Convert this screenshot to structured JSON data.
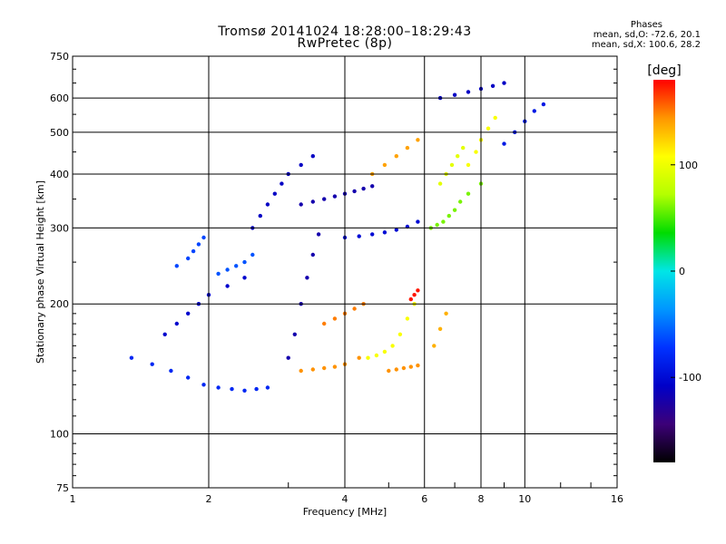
{
  "header": {
    "title_line1": "Tromsø 20141024 18:28:00–18:29:43",
    "title_line2": "RwPretec (8p)",
    "phases_label": "Phases",
    "phases_o": "mean, sd,O: -72.6, 20.1",
    "phases_x": "mean, sd,X: 100.6, 28.2"
  },
  "chart_data": {
    "type": "scatter",
    "title": "Tromsø 20141024 18:28:00–18:29:43",
    "subtitle": "RwPretec (8p)",
    "xlabel": "Frequency [MHz]",
    "ylabel": "Stationary phase Virtual Height [km]",
    "xscale": "log",
    "yscale": "log",
    "xlim": [
      1,
      16
    ],
    "ylim": [
      75,
      750
    ],
    "xticks": [
      "1",
      "2",
      "4",
      "6",
      "8",
      "10",
      "16"
    ],
    "xtick_values": [
      1,
      2,
      4,
      6,
      8,
      10,
      16
    ],
    "yticks": [
      "75",
      "100",
      "200",
      "300",
      "400",
      "500",
      "600",
      "750"
    ],
    "ytick_values": [
      75,
      100,
      200,
      300,
      400,
      500,
      600,
      750
    ],
    "grid": true,
    "colorbar": {
      "label": "[deg]",
      "range": [
        -180,
        180
      ],
      "ticks": [
        "100",
        "0",
        "-100"
      ],
      "tick_values": [
        100,
        0,
        -100
      ],
      "colors": [
        "#000000",
        "#3c0078",
        "#0000c8",
        "#0032ff",
        "#0096ff",
        "#00e6e6",
        "#00dc00",
        "#b4ff00",
        "#ffff00",
        "#ff9600",
        "#ff0000"
      ]
    },
    "series": [
      {
        "x": [
          1.35,
          1.5,
          1.65,
          1.8,
          1.95,
          2.1,
          2.25,
          2.4,
          2.55,
          2.7
        ],
        "y": [
          150,
          145,
          140,
          135,
          130,
          128,
          127,
          126,
          127,
          128
        ],
        "phase": -80
      },
      {
        "x": [
          1.6,
          1.7,
          1.8,
          1.9,
          2.0,
          2.2,
          2.4
        ],
        "y": [
          170,
          180,
          190,
          200,
          210,
          220,
          230
        ],
        "phase": -105
      },
      {
        "x": [
          1.7,
          1.8,
          1.85,
          1.9,
          1.95
        ],
        "y": [
          245,
          255,
          265,
          275,
          285
        ],
        "phase": -65
      },
      {
        "x": [
          2.1,
          2.2,
          2.3,
          2.4,
          2.5
        ],
        "y": [
          235,
          240,
          245,
          250,
          260
        ],
        "phase": -60
      },
      {
        "x": [
          2.5,
          2.6,
          2.7,
          2.8,
          2.9,
          3.0,
          3.2,
          3.4
        ],
        "y": [
          300,
          320,
          340,
          360,
          380,
          400,
          420,
          440
        ],
        "phase": -110
      },
      {
        "x": [
          3.0,
          3.1,
          3.2,
          3.3,
          3.4,
          3.5
        ],
        "y": [
          150,
          170,
          200,
          230,
          260,
          290
        ],
        "phase": -120
      },
      {
        "x": [
          3.2,
          3.4,
          3.6,
          3.8,
          4.0,
          4.2,
          4.4,
          4.6
        ],
        "y": [
          340,
          345,
          350,
          355,
          360,
          365,
          370,
          375
        ],
        "phase": -120
      },
      {
        "x": [
          3.2,
          3.4,
          3.6,
          3.8,
          4.0,
          4.3
        ],
        "y": [
          140,
          141,
          142,
          143,
          145,
          150
        ],
        "phase": 145
      },
      {
        "x": [
          3.6,
          3.8,
          4.0,
          4.2,
          4.4
        ],
        "y": [
          180,
          185,
          190,
          195,
          200
        ],
        "phase": 150
      },
      {
        "x": [
          4.0,
          4.3,
          4.6,
          4.9,
          5.2,
          5.5,
          5.8
        ],
        "y": [
          285,
          287,
          290,
          293,
          297,
          302,
          310
        ],
        "phase": -100
      },
      {
        "x": [
          4.5,
          4.7,
          4.9,
          5.1,
          5.3,
          5.5,
          5.7
        ],
        "y": [
          150,
          152,
          155,
          160,
          170,
          185,
          200
        ],
        "phase": 105
      },
      {
        "x": [
          4.6,
          4.9,
          5.2,
          5.5,
          5.8
        ],
        "y": [
          400,
          420,
          440,
          460,
          480
        ],
        "phase": 140
      },
      {
        "x": [
          5.0,
          5.2,
          5.4,
          5.6,
          5.8
        ],
        "y": [
          140,
          141,
          142,
          143,
          144
        ],
        "phase": 145
      },
      {
        "x": [
          5.6,
          5.7,
          5.8
        ],
        "y": [
          205,
          210,
          215
        ],
        "phase": 175
      },
      {
        "x": [
          6.2,
          6.4,
          6.6,
          6.8,
          7.0,
          7.2,
          7.5,
          8.0
        ],
        "y": [
          300,
          305,
          310,
          320,
          330,
          345,
          360,
          380
        ],
        "phase": 60
      },
      {
        "x": [
          6.5,
          6.7,
          6.9,
          7.1,
          7.3
        ],
        "y": [
          380,
          400,
          420,
          440,
          460
        ],
        "phase": 95
      },
      {
        "x": [
          6.3,
          6.5,
          6.7
        ],
        "y": [
          160,
          175,
          190
        ],
        "phase": 135
      },
      {
        "x": [
          7.5,
          7.8,
          8.0,
          8.3,
          8.6
        ],
        "y": [
          420,
          450,
          480,
          510,
          540
        ],
        "phase": 105
      },
      {
        "x": [
          9.0,
          9.5,
          10.0,
          10.5,
          11.0
        ],
        "y": [
          470,
          500,
          530,
          560,
          580
        ],
        "phase": -90
      },
      {
        "x": [
          6.5,
          7.0,
          7.5,
          8.0,
          8.5,
          9.0
        ],
        "y": [
          600,
          610,
          620,
          630,
          640,
          650
        ],
        "phase": -110
      }
    ]
  }
}
